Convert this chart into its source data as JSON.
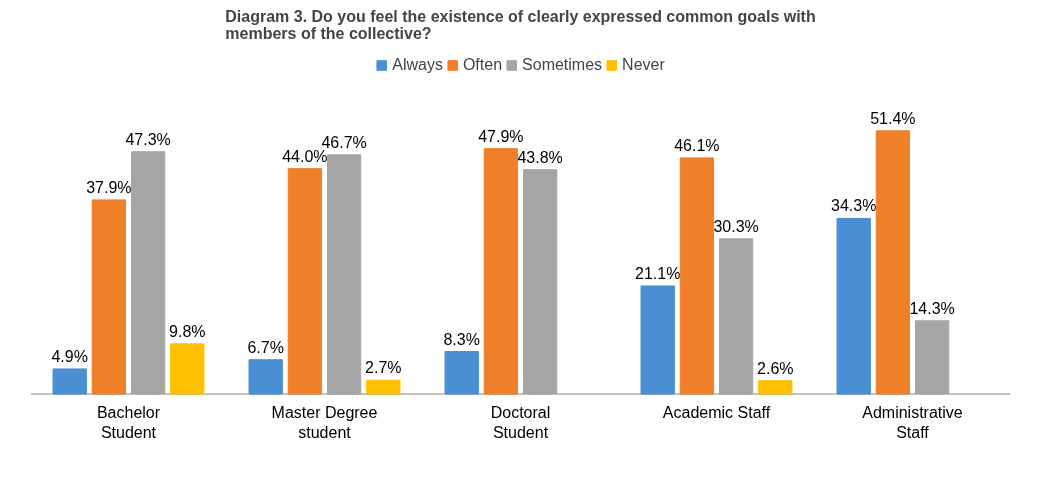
{
  "chart_data": {
    "type": "bar",
    "title": "Diagram 3. Do you feel the existence of clearly expressed common goals with members of the collective?",
    "categories": [
      "Bachelor Student",
      "Master Degree student",
      "Doctoral Student",
      "Academic Staff",
      "Administrative Staff"
    ],
    "series": [
      {
        "name": "Always",
        "color": "#4a8fd4",
        "values": [
          4.9,
          6.7,
          8.3,
          21.1,
          34.3
        ],
        "value_labels": [
          "4.9%",
          "6.7%",
          "8.3%",
          "21.1%",
          "34.3%"
        ]
      },
      {
        "name": "Often",
        "color": "#f07f2a",
        "values": [
          37.9,
          44.0,
          47.9,
          46.1,
          51.4
        ],
        "value_labels": [
          "37.9%",
          "44.0%",
          "47.9%",
          "46.1%",
          "51.4%"
        ]
      },
      {
        "name": "Sometimes",
        "color": "#a5a5a5",
        "values": [
          47.3,
          46.7,
          43.8,
          30.3,
          14.3
        ],
        "value_labels": [
          "47.3%",
          "46.7%",
          "43.8%",
          "30.3%",
          "14.3%"
        ]
      },
      {
        "name": "Never",
        "color": "#ffc000",
        "values": [
          9.8,
          2.7,
          null,
          2.6,
          null
        ],
        "value_labels": [
          "9.8%",
          "2.7%",
          null,
          "2.6%",
          null
        ]
      }
    ],
    "legend": "top",
    "grid": false
  }
}
